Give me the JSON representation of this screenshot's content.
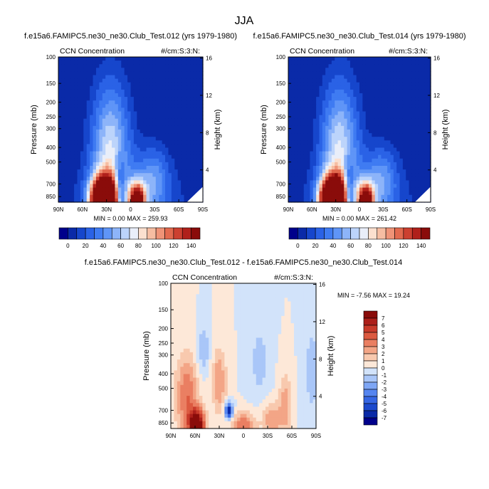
{
  "page_title": "JJA",
  "colors": {
    "ccn": [
      "#00008b",
      "#0a2aa8",
      "#1646cc",
      "#2a62e6",
      "#3f7bf2",
      "#5f95f7",
      "#8db4f9",
      "#bcd4fb",
      "#e9eef9",
      "#fbe0cf",
      "#f6bda2",
      "#ef9377",
      "#e2694e",
      "#cc4030",
      "#b0201b",
      "#8a0c0a"
    ],
    "diff": [
      "#00008b",
      "#0a2aa8",
      "#1b49cd",
      "#3566e4",
      "#5585f0",
      "#7ea6f5",
      "#a9c6f8",
      "#d2e3fa",
      "#fde8d8",
      "#f8c9ae",
      "#f3a586",
      "#ea7f62",
      "#dc5a40",
      "#c83a2a",
      "#ac1f1a",
      "#8a0c0a"
    ]
  },
  "chart_data": [
    {
      "id": "panel-012",
      "type": "heatmap",
      "title": "f.e15a6.FAMIPC5.ne30_ne30.Club_Test.012 (yrs 1979-1980)",
      "left_label": "CCN Concentration",
      "right_label": "#/cm:S:3:N:",
      "ylabel": "Pressure (mb)",
      "y2label": "Height (km)",
      "x_ticks": [
        "90N",
        "60N",
        "30N",
        "0",
        "30S",
        "60S",
        "90S"
      ],
      "x_values": [
        90,
        60,
        30,
        0,
        -30,
        -60,
        -90
      ],
      "p_ticks": [
        "100",
        "150",
        "200",
        "250",
        "300",
        "400",
        "500",
        "700",
        "850"
      ],
      "p_values": [
        100,
        150,
        200,
        250,
        300,
        400,
        500,
        700,
        850
      ],
      "p_range": [
        100,
        925
      ],
      "km_ticks": [
        "16",
        "12",
        "8",
        "4"
      ],
      "km_values": [
        16,
        12,
        8,
        4
      ],
      "stats": "MIN =   0.00   MAX = 259.93",
      "min": 0.0,
      "max": 259.93
    },
    {
      "id": "panel-014",
      "type": "heatmap",
      "title": "f.e15a6.FAMIPC5.ne30_ne30.Club_Test.014 (yrs 1979-1980)",
      "left_label": "CCN Concentration",
      "right_label": "#/cm:S:3:N:",
      "ylabel": "Pressure (mb)",
      "y2label": "Height (km)",
      "x_ticks": [
        "90N",
        "60N",
        "30N",
        "0",
        "30S",
        "60S",
        "90S"
      ],
      "x_values": [
        90,
        60,
        30,
        0,
        -30,
        -60,
        -90
      ],
      "p_ticks": [
        "100",
        "150",
        "200",
        "250",
        "300",
        "400",
        "500",
        "700",
        "850"
      ],
      "p_values": [
        100,
        150,
        200,
        250,
        300,
        400,
        500,
        700,
        850
      ],
      "p_range": [
        100,
        925
      ],
      "km_ticks": [
        "16",
        "12",
        "8",
        "4"
      ],
      "km_values": [
        16,
        12,
        8,
        4
      ],
      "stats": "MIN =   0.00   MAX = 261.42",
      "min": 0.0,
      "max": 261.42
    },
    {
      "id": "panel-diff",
      "type": "heatmap",
      "title": "f.e15a6.FAMIPC5.ne30_ne30.Club_Test.012 - f.e15a6.FAMIPC5.ne30_ne30.Club_Test.014",
      "left_label": "CCN Concentration",
      "right_label": "#/cm:S:3:N:",
      "ylabel": "Pressure (mb)",
      "y2label": "Height (km)",
      "x_ticks": [
        "90N",
        "60N",
        "30N",
        "0",
        "30S",
        "60S",
        "90S"
      ],
      "x_values": [
        90,
        60,
        30,
        0,
        -30,
        -60,
        -90
      ],
      "p_ticks": [
        "100",
        "150",
        "200",
        "250",
        "300",
        "400",
        "500",
        "700",
        "850"
      ],
      "p_values": [
        100,
        150,
        200,
        250,
        300,
        400,
        500,
        700,
        850
      ],
      "p_range": [
        100,
        925
      ],
      "km_ticks": [
        "16",
        "12",
        "8",
        "4"
      ],
      "km_values": [
        16,
        12,
        8,
        4
      ],
      "stats": "MIN =  -7.56   MAX =  19.24",
      "min": -7.56,
      "max": 19.24
    }
  ],
  "colorbar_ccn": {
    "labels": [
      "0",
      "20",
      "40",
      "60",
      "80",
      "100",
      "120",
      "140"
    ],
    "values": [
      0,
      20,
      40,
      60,
      80,
      100,
      120,
      140
    ],
    "levels": [
      0,
      10,
      20,
      30,
      40,
      50,
      60,
      70,
      80,
      90,
      100,
      110,
      120,
      130,
      140
    ]
  },
  "colorbar_diff": {
    "labels": [
      "7",
      "6",
      "5",
      "4",
      "3",
      "2",
      "1",
      "0",
      "-1",
      "-2",
      "-3",
      "-4",
      "-5",
      "-6",
      "-7"
    ],
    "values": [
      7,
      6,
      5,
      4,
      3,
      2,
      1,
      0,
      -1,
      -2,
      -3,
      -4,
      -5,
      -6,
      -7
    ]
  }
}
